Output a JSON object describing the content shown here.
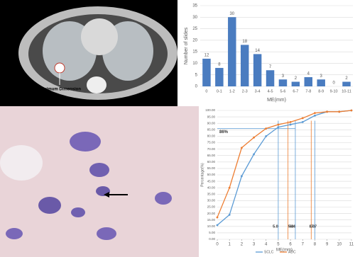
{
  "ct_image": {
    "annotation": "Maximum Dimension"
  },
  "chart_data": [
    {
      "type": "bar",
      "y_label": "Number of slides",
      "x_label": "ME(mm)",
      "color": "#4a7cc0",
      "categories": [
        "0",
        "0-1",
        "1-2",
        "2-3",
        "3-4",
        "4-5",
        "5-6",
        "6-7",
        "7-8",
        "8-9",
        "9-10",
        "10-11"
      ],
      "values": [
        12,
        8,
        30,
        18,
        14,
        7,
        3,
        2,
        4,
        3,
        0,
        2
      ],
      "ylim": [
        0,
        35
      ],
      "yticks": [
        0,
        5,
        10,
        15,
        20,
        25,
        30,
        35
      ],
      "grid": true
    },
    {
      "type": "line",
      "y_label": "Percentage(%)",
      "x_label": "ME(mm)",
      "x": [
        0,
        1,
        2,
        3,
        4,
        5,
        6,
        7,
        8,
        9,
        10,
        11
      ],
      "series": [
        {
          "name": "SCLC",
          "color": "#5b9bd5",
          "values": [
            11,
            19,
            49,
            66,
            80,
            87,
            89,
            91,
            96,
            99,
            99,
            100
          ]
        },
        {
          "name": "ADC",
          "color": "#ed7d31",
          "values": [
            17,
            40,
            71,
            79,
            86,
            89,
            91,
            94,
            98,
            99,
            99,
            100
          ]
        }
      ],
      "xlim": [
        0,
        11
      ],
      "xticks": [
        0,
        1,
        2,
        3,
        4,
        5,
        6,
        7,
        8,
        9,
        10,
        11
      ],
      "ylim": [
        0,
        100
      ],
      "yticks": [
        {
          "value": 0,
          "label": "0.00"
        },
        {
          "value": 5,
          "label": "5.00"
        },
        {
          "value": 10,
          "label": "10.00"
        },
        {
          "value": 15,
          "label": "15.00"
        },
        {
          "value": 20,
          "label": "20.00"
        },
        {
          "value": 25,
          "label": "25.00"
        },
        {
          "value": 30,
          "label": "30.00"
        },
        {
          "value": 35,
          "label": "35.00"
        },
        {
          "value": 40,
          "label": "40.00"
        },
        {
          "value": 45,
          "label": "45.00"
        },
        {
          "value": 50,
          "label": "50.00"
        },
        {
          "value": 55,
          "label": "55.00"
        },
        {
          "value": 60,
          "label": "60.00"
        },
        {
          "value": 65,
          "label": "65.00"
        },
        {
          "value": 70,
          "label": "70.00"
        },
        {
          "value": 75,
          "label": "75.00"
        },
        {
          "value": 80,
          "label": "80.00"
        },
        {
          "value": 85,
          "label": "85.00"
        },
        {
          "value": 90,
          "label": "90.00"
        },
        {
          "value": 95,
          "label": "95.00"
        },
        {
          "value": 100,
          "label": "100.00"
        }
      ],
      "grid": true,
      "reference_lines": [
        {
          "value": 5.0,
          "label": "5.0",
          "color": "#5b9bd5"
        },
        {
          "value": 5.8,
          "label": "5.8",
          "color": "#ed7d31"
        },
        {
          "value": 6.4,
          "label": "6.4",
          "color": "#5b9bd5"
        },
        {
          "value": 7.7,
          "label": "7.7",
          "color": "#ed7d31"
        },
        {
          "value": 8.0,
          "label": "8.0",
          "color": "#5b9bd5"
        }
      ],
      "annotation": {
        "value": 86,
        "label": "86%"
      }
    }
  ]
}
